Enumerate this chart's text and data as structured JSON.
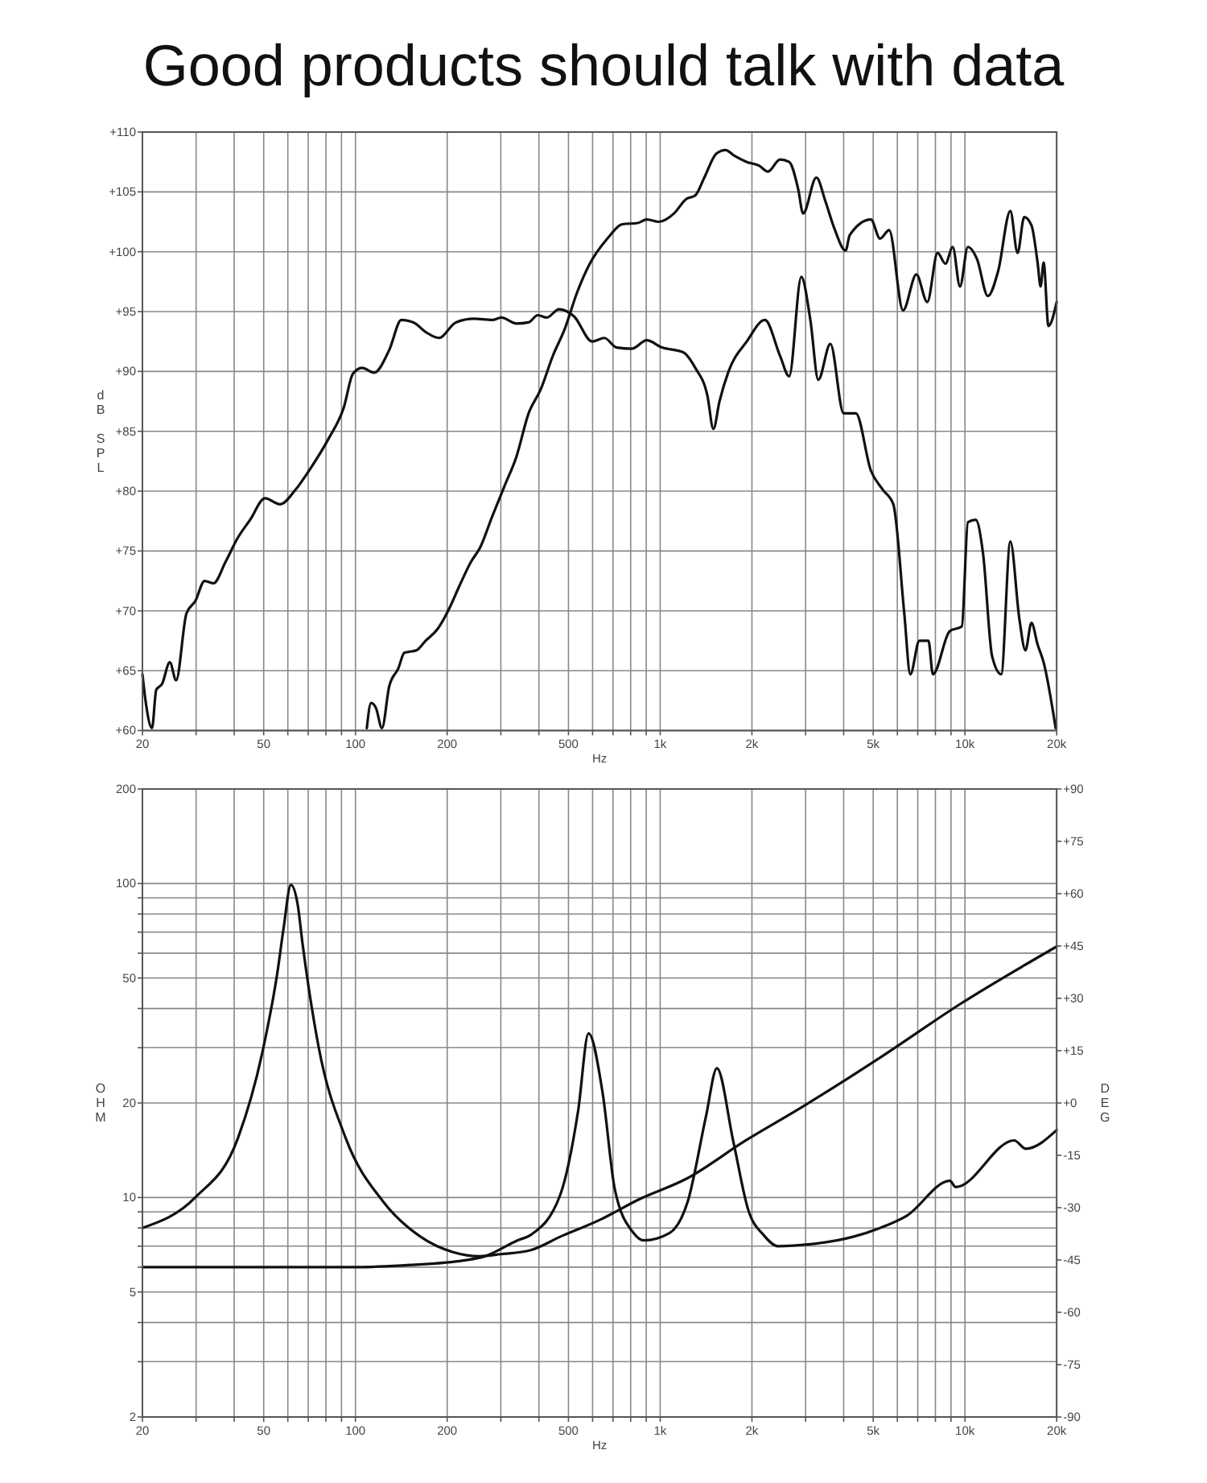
{
  "chart_data": [
    {
      "type": "line",
      "title": "Good products should talk with data",
      "xlabel": "Hz",
      "ylabel": "dB SPL",
      "log": "x",
      "xlim": [
        20,
        20000
      ],
      "ylim": [
        60,
        110
      ],
      "xticks": [
        20,
        {
          "value": 30,
          "label": null
        },
        {
          "value": 40,
          "label": null
        },
        50,
        {
          "value": 60,
          "label": null
        },
        {
          "value": 70,
          "label": null
        },
        {
          "value": 80,
          "label": null
        },
        {
          "value": 90,
          "label": null
        },
        100,
        200,
        {
          "value": 300,
          "label": null
        },
        {
          "value": 400,
          "label": null
        },
        500,
        {
          "value": 600,
          "label": null
        },
        {
          "value": 700,
          "label": null
        },
        {
          "value": 800,
          "label": null
        },
        {
          "value": 900,
          "label": null
        },
        {
          "value": 1000,
          "label": "1k"
        },
        {
          "value": 2000,
          "label": "2k"
        },
        {
          "value": 3000,
          "label": null
        },
        {
          "value": 4000,
          "label": null
        },
        {
          "value": 5000,
          "label": "5k"
        },
        {
          "value": 6000,
          "label": null
        },
        {
          "value": 7000,
          "label": null
        },
        {
          "value": 8000,
          "label": null
        },
        {
          "value": 9000,
          "label": null
        },
        {
          "value": 10000,
          "label": "10k"
        },
        {
          "value": 20000,
          "label": "20k"
        }
      ],
      "yticks": [
        {
          "value": 60,
          "label": "+60"
        },
        {
          "value": 65,
          "label": "+65"
        },
        {
          "value": 70,
          "label": "+70"
        },
        {
          "value": 75,
          "label": "+75"
        },
        {
          "value": 80,
          "label": "+80"
        },
        {
          "value": 85,
          "label": "+85"
        },
        {
          "value": 90,
          "label": "+90"
        },
        {
          "value": 95,
          "label": "+95"
        },
        {
          "value": 100,
          "label": "+100"
        },
        {
          "value": 105,
          "label": "+105"
        },
        {
          "value": 110,
          "label": "+110"
        }
      ],
      "grid": true,
      "series": [
        {
          "color": "#111111",
          "x": [
            20,
            20.5,
            21.5,
            22.2,
            23.2,
            24.6,
            25.8,
            27.9,
            29.8,
            32,
            34.2,
            37.5,
            41.1,
            45.1,
            50.5,
            56.6,
            63.5,
            71.2,
            81.7,
            91.6,
            98.1,
            105.1,
            115.2,
            129.1,
            141.5,
            155,
            169.9,
            187.9,
            213.6,
            245.1,
            281.2,
            301.1,
            337.7,
            370,
            396.4,
            424.6,
            465.3,
            521.7,
            598.4,
            655.9,
            718.7,
            805.8,
            903.4,
            1013,
            1189,
            1303,
            1428,
            1495,
            1565,
            1676,
            1923,
            2206,
            2474,
            2650,
            2904,
            3110,
            3302,
            3617,
            4000,
            4384,
            4915,
            5386,
            5822,
            6322,
            6617,
            7088,
            7591,
            7850,
            8912,
            9767,
            10225,
            10850,
            11464,
            12280,
            13150,
            14090,
            15090,
            15790,
            16530,
            17310,
            18120,
            19850
          ],
          "values": [
            64.7,
            62.4,
            60.2,
            63.4,
            63.9,
            65.7,
            64.2,
            69.8,
            70.8,
            72.5,
            72.3,
            74.1,
            76.1,
            77.6,
            79.4,
            78.9,
            80.1,
            81.9,
            84.4,
            87,
            89.8,
            90.3,
            89.9,
            91.8,
            94.3,
            94.1,
            93.3,
            92.8,
            94.1,
            94.4,
            94.3,
            94.5,
            94,
            94.1,
            94.7,
            94.5,
            95.2,
            94.6,
            92.5,
            92.8,
            92,
            91.9,
            92.6,
            92,
            91.6,
            90.3,
            88,
            85.2,
            87.5,
            90,
            92.5,
            94.3,
            91.3,
            89.6,
            97.9,
            94.3,
            89.3,
            92.3,
            86.5,
            86.5,
            81.7,
            80.1,
            78.9,
            69.8,
            64.7,
            67.5,
            67.5,
            64.7,
            68.3,
            68.7,
            77.4,
            77.6,
            74.8,
            66.2,
            64.7,
            75.8,
            69.3,
            66.7,
            69,
            67.2,
            65.7,
            60.2
          ]
        },
        {
          "color": "#111111",
          "x": [
            109,
            112.5,
            116.7,
            122.2,
            129.1,
            138.3,
            144.7,
            158.6,
            169.9,
            186.2,
            204.1,
            218.6,
            239.5,
            256.6,
            281.2,
            308.1,
            337.7,
            370,
            405.4,
            444.4,
            487,
            533.8,
            584.8,
            671.1,
            752.4,
            843.4,
            903.4,
            990,
            1110,
            1217,
            1303,
            1396,
            1529,
            1638,
            1755,
            1923,
            2107,
            2257,
            2474,
            2650,
            2838,
            2944,
            3254,
            3486,
            3734,
            4060,
            4188,
            4915,
            5264,
            5639,
            6266,
            6928,
            7522,
            8132,
            8630,
            9118,
            9632,
            10225,
            10950,
            11894,
            12856,
            14090,
            14882,
            15650,
            16530,
            17310,
            17712,
            18120,
            18796,
            20000
          ],
          "values": [
            60.2,
            62.3,
            61.9,
            60.2,
            63.7,
            65.2,
            66.5,
            66.7,
            67.5,
            68.5,
            70.3,
            72,
            74.1,
            75.3,
            77.9,
            80.4,
            82.9,
            86.5,
            88.5,
            91.3,
            93.6,
            96.6,
            98.9,
            101.1,
            102.3,
            102.4,
            102.7,
            102.5,
            103.2,
            104.4,
            104.7,
            106.2,
            108.2,
            108.5,
            108,
            107.5,
            107.2,
            106.7,
            107.7,
            107.5,
            105.2,
            103.2,
            106.2,
            104.2,
            101.9,
            100.1,
            101.4,
            102.7,
            101.1,
            101.8,
            95.1,
            98.1,
            95.8,
            99.9,
            99,
            100.4,
            97.1,
            100.4,
            99.4,
            96.3,
            98.4,
            103.4,
            99.9,
            102.9,
            102.2,
            99.1,
            97.1,
            99.1,
            93.8,
            95.8
          ]
        }
      ]
    },
    {
      "type": "line",
      "xlabel": "Hz",
      "ylabel": "OHM",
      "y2label": "DEG",
      "log": "xy",
      "xlim": [
        20,
        20000
      ],
      "ylim": [
        2,
        200
      ],
      "y2lim": [
        -90,
        90
      ],
      "xticks": [
        20,
        {
          "value": 30,
          "label": null
        },
        {
          "value": 40,
          "label": null
        },
        50,
        {
          "value": 60,
          "label": null
        },
        {
          "value": 70,
          "label": null
        },
        {
          "value": 80,
          "label": null
        },
        {
          "value": 90,
          "label": null
        },
        100,
        200,
        {
          "value": 300,
          "label": null
        },
        {
          "value": 400,
          "label": null
        },
        500,
        {
          "value": 600,
          "label": null
        },
        {
          "value": 700,
          "label": null
        },
        {
          "value": 800,
          "label": null
        },
        {
          "value": 900,
          "label": null
        },
        {
          "value": 1000,
          "label": "1k"
        },
        {
          "value": 2000,
          "label": "2k"
        },
        {
          "value": 3000,
          "label": null
        },
        {
          "value": 4000,
          "label": null
        },
        {
          "value": 5000,
          "label": "5k"
        },
        {
          "value": 6000,
          "label": null
        },
        {
          "value": 7000,
          "label": null
        },
        {
          "value": 8000,
          "label": null
        },
        {
          "value": 9000,
          "label": null
        },
        {
          "value": 10000,
          "label": "10k"
        },
        {
          "value": 20000,
          "label": "20k"
        }
      ],
      "yticks": [
        2,
        {
          "value": 3,
          "label": null
        },
        {
          "value": 4,
          "label": null
        },
        5,
        {
          "value": 6,
          "label": null
        },
        {
          "value": 7,
          "label": null
        },
        {
          "value": 8,
          "label": null
        },
        {
          "value": 9,
          "label": null
        },
        10,
        20,
        {
          "value": 30,
          "label": null
        },
        {
          "value": 40,
          "label": null
        },
        50,
        {
          "value": 60,
          "label": null
        },
        {
          "value": 70,
          "label": null
        },
        {
          "value": 80,
          "label": null
        },
        {
          "value": 90,
          "label": null
        },
        100,
        200
      ],
      "y2ticks": [
        -90,
        -75,
        -60,
        -45,
        -30,
        -15,
        {
          "value": 0,
          "label": "+0"
        },
        {
          "value": 15,
          "label": "+15"
        },
        {
          "value": 30,
          "label": "+30"
        },
        {
          "value": 45,
          "label": "+45"
        },
        {
          "value": 60,
          "label": "+60"
        },
        {
          "value": 75,
          "label": "+75"
        },
        {
          "value": 90,
          "label": "+90"
        }
      ],
      "grid": true,
      "series": [
        {
          "color": "#111111",
          "x": [
            20,
            29.8,
            41.2,
            49.5,
            55.6,
            58.1,
            61.4,
            64.6,
            67.1,
            75.7,
            92.8,
            123.3,
            163.6,
            209,
            256,
            300,
            376,
            470,
            636,
            849,
            1224,
            1910,
            2867,
            5268,
            9674,
            20000
          ],
          "values": [
            8,
            10,
            15.5,
            29,
            53,
            72,
            99,
            86,
            64,
            30.2,
            15.5,
            9.7,
            7.5,
            6.7,
            6.5,
            6.6,
            6.8,
            7.5,
            8.5,
            9.85,
            11.5,
            15.2,
            19.2,
            27.9,
            41.4,
            63
          ]
        },
        {
          "color": "#111111",
          "x": [
            20,
            100,
            151,
            226,
            266,
            340,
            376,
            470,
            538,
            582,
            647,
            710,
            814,
            884,
            1072,
            1231,
            1413,
            1535,
            1737,
            1947,
            2183,
            2436,
            3105,
            4299,
            5268,
            6443,
            8920,
            9330,
            14510,
            15830,
            20000
          ],
          "values": [
            6,
            6,
            6.1,
            6.3,
            6.5,
            7.3,
            7.6,
            10.2,
            18.9,
            33.3,
            21.6,
            10.6,
            7.75,
            7.3,
            7.7,
            9.7,
            18.1,
            25.8,
            15.1,
            9.1,
            7.6,
            7,
            7.1,
            7.5,
            8,
            8.75,
            11.3,
            10.8,
            15.2,
            14.3,
            16.4
          ]
        }
      ]
    }
  ]
}
